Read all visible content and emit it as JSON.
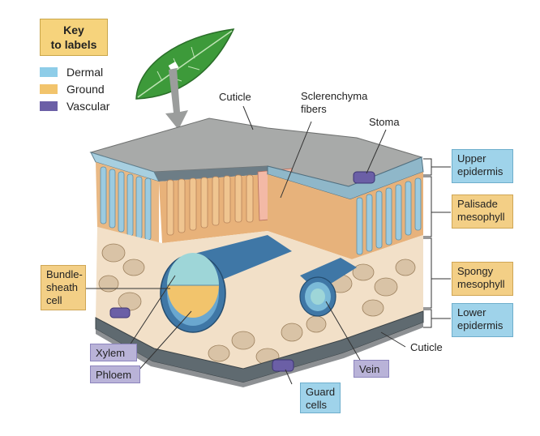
{
  "key": {
    "title": "Key\nto labels",
    "items": [
      {
        "label": "Dermal",
        "color": "#8ecde8"
      },
      {
        "label": "Ground",
        "color": "#f2c46c"
      },
      {
        "label": "Vascular",
        "color": "#6b5fa6"
      }
    ]
  },
  "labels": {
    "cuticle_top": "Cuticle",
    "sclerenchyma": "Sclerenchyma\nfibers",
    "stoma": "Stoma",
    "upper_epidermis": "Upper\nepidermis",
    "palisade": "Palisade\nmesophyll",
    "spongy": "Spongy\nmesophyll",
    "lower_epidermis": "Lower\nepidermis",
    "cuticle_bottom": "Cuticle",
    "bundle_sheath": "Bundle-\nsheath\ncell",
    "xylem": "Xylem",
    "phloem": "Phloem",
    "vein": "Vein",
    "guard_cells": "Guard\ncells"
  },
  "colors": {
    "dermal": "#9fd3ea",
    "ground": "#f3cf86",
    "vascular": "#b9b3d8",
    "leaf_green": "#3d9a3a",
    "cuticle_gray": "#a7a9a8"
  }
}
